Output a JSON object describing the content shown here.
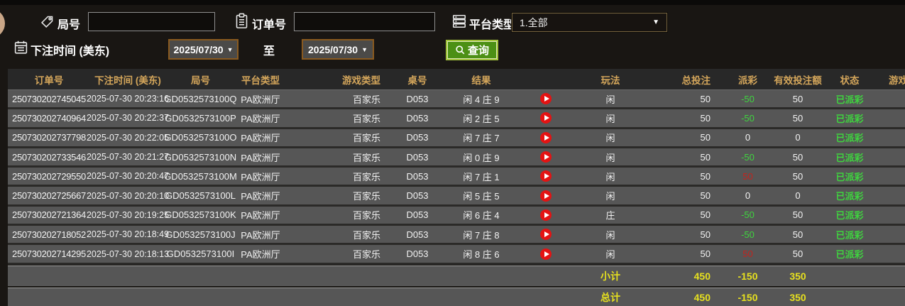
{
  "filters": {
    "round": {
      "label": "局号",
      "value": "",
      "icon": "tag-icon"
    },
    "order": {
      "label": "订单号",
      "value": "",
      "icon": "clipboard-icon"
    },
    "platform": {
      "label": "平台类型",
      "value": "1.全部",
      "icon": "list-icon"
    },
    "bet_time": {
      "label": "下注时间 (美东)",
      "icon": "calendar-icon",
      "from": "2025/07/30",
      "to_label": "至",
      "to": "2025/07/30"
    },
    "query_label": "查询"
  },
  "table": {
    "headers": {
      "order": "订单号",
      "time": "下注时间 (美东)",
      "round": "局号",
      "platform": "平台类型",
      "game": "游戏类型",
      "table_no": "桌号",
      "result": "结果",
      "play": "玩法",
      "total": "总投注",
      "payout": "派彩",
      "valid": "有效投注额",
      "status": "状态",
      "game_cut": "游戏"
    },
    "rows": [
      {
        "order": "250730202745045",
        "time": "2025-07-30 20:23:16",
        "round": "GD0532573100Q",
        "platform": "PA欧洲厅",
        "game": "百家乐",
        "table_no": "D053",
        "result": "闲 4 庄 9",
        "play": "闲",
        "total": "50",
        "payout": "-50",
        "payout_color": "green",
        "valid": "50",
        "status": "已派彩"
      },
      {
        "order": "250730202740964",
        "time": "2025-07-30 20:22:37",
        "round": "GD0532573100P",
        "platform": "PA欧洲厅",
        "game": "百家乐",
        "table_no": "D053",
        "result": "闲 2 庄 5",
        "play": "闲",
        "total": "50",
        "payout": "-50",
        "payout_color": "green",
        "valid": "50",
        "status": "已派彩"
      },
      {
        "order": "250730202737798",
        "time": "2025-07-30 20:22:05",
        "round": "GD0532573100O",
        "platform": "PA欧洲厅",
        "game": "百家乐",
        "table_no": "D053",
        "result": "闲 7 庄 7",
        "play": "闲",
        "total": "50",
        "payout": "0",
        "payout_color": "white",
        "valid": "0",
        "status": "已派彩"
      },
      {
        "order": "250730202733546",
        "time": "2025-07-30 20:21:27",
        "round": "GD0532573100N",
        "platform": "PA欧洲厅",
        "game": "百家乐",
        "table_no": "D053",
        "result": "闲 0 庄 9",
        "play": "闲",
        "total": "50",
        "payout": "-50",
        "payout_color": "green",
        "valid": "50",
        "status": "已派彩"
      },
      {
        "order": "250730202729550",
        "time": "2025-07-30 20:20:47",
        "round": "GD0532573100M",
        "platform": "PA欧洲厅",
        "game": "百家乐",
        "table_no": "D053",
        "result": "闲 7 庄 1",
        "play": "闲",
        "total": "50",
        "payout": "50",
        "payout_color": "red",
        "valid": "50",
        "status": "已派彩"
      },
      {
        "order": "250730202725667",
        "time": "2025-07-30 20:20:10",
        "round": "GD0532573100L",
        "platform": "PA欧洲厅",
        "game": "百家乐",
        "table_no": "D053",
        "result": "闲 5 庄 5",
        "play": "闲",
        "total": "50",
        "payout": "0",
        "payout_color": "white",
        "valid": "0",
        "status": "已派彩"
      },
      {
        "order": "250730202721364",
        "time": "2025-07-30 20:19:25",
        "round": "GD0532573100K",
        "platform": "PA欧洲厅",
        "game": "百家乐",
        "table_no": "D053",
        "result": "闲 6 庄 4",
        "play": "庄",
        "total": "50",
        "payout": "-50",
        "payout_color": "green",
        "valid": "50",
        "status": "已派彩"
      },
      {
        "order": "250730202718052",
        "time": "2025-07-30 20:18:49",
        "round": "GD0532573100J",
        "platform": "PA欧洲厅",
        "game": "百家乐",
        "table_no": "D053",
        "result": "闲 7 庄 8",
        "play": "闲",
        "total": "50",
        "payout": "-50",
        "payout_color": "green",
        "valid": "50",
        "status": "已派彩"
      },
      {
        "order": "250730202714295",
        "time": "2025-07-30 20:18:13",
        "round": "GD0532573100I",
        "platform": "PA欧洲厅",
        "game": "百家乐",
        "table_no": "D053",
        "result": "闲 8 庄 6",
        "play": "闲",
        "total": "50",
        "payout": "50",
        "payout_color": "red",
        "valid": "50",
        "status": "已派彩"
      }
    ],
    "subtotal": {
      "label": "小计",
      "total": "450",
      "payout": "-150",
      "valid": "350"
    },
    "grand_total": {
      "label": "总计",
      "total": "450",
      "payout": "-150",
      "valid": "350"
    }
  },
  "colors": {
    "header_gold": "#d4a65b",
    "loss_green": "#3fd43f",
    "win_red": "#c4231d",
    "total_yellow": "#e6e01f",
    "button_green": "#4c9015",
    "row_gray": "#565656",
    "date_border_orange": "#8a5a1f"
  }
}
